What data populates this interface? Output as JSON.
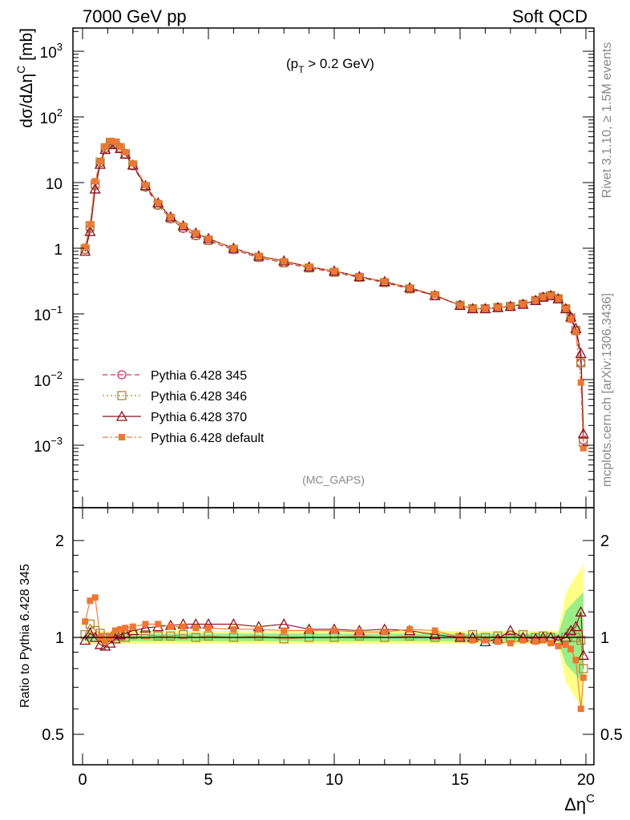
{
  "header": {
    "left": "7000 GeV pp",
    "right": "Soft QCD"
  },
  "side_labels": {
    "rivet": "Rivet 3.1.10, ≥ 1.5M events",
    "mcplots": "mcplots.cern.ch [arXiv:1306.3436]"
  },
  "annotations": {
    "cut": "(p_T > 0.2 GeV)",
    "cut_prefix": "(p",
    "cut_sub": "T",
    "cut_suffix": " > 0.2 GeV)",
    "analysis": "(MC_GAPS)"
  },
  "axes": {
    "ylabel_main": "dσ/dΔη^C [mb]",
    "ylabel_main_base": "dσ/dΔη",
    "ylabel_main_sup": "C",
    "ylabel_main_unit": " [mb]",
    "ylabel_ratio": "Ratio to Pythia 6.428 345",
    "xlabel": "Δη^C",
    "xlabel_base": "Δη",
    "xlabel_sup": "C",
    "x_ticks": [
      "0",
      "5",
      "10",
      "15",
      "20"
    ],
    "main_ticks": [
      "10^-3",
      "10^-2",
      "10^-1",
      "1",
      "10",
      "10^2",
      "10^3"
    ],
    "ratio_ticks": [
      "0.5",
      "1",
      "2"
    ]
  },
  "chart_data": [
    {
      "type": "line",
      "panel": "main",
      "title": "",
      "xlabel": "Δη^C",
      "ylabel": "dσ/dΔη^C [mb]",
      "xlim": [
        -0.5,
        20.5
      ],
      "ylim": [
        0.00015,
        2500
      ],
      "yscale": "log",
      "legend_position": "lower-left",
      "x": [
        0.1,
        0.3,
        0.5,
        0.7,
        0.9,
        1.1,
        1.3,
        1.5,
        1.7,
        2.0,
        2.5,
        3.0,
        3.5,
        4.0,
        4.5,
        5.0,
        6.0,
        7.0,
        8.0,
        9.0,
        10.0,
        11.0,
        12.0,
        13.0,
        14.0,
        15.0,
        15.5,
        16.0,
        16.5,
        17.0,
        17.5,
        18.0,
        18.3,
        18.6,
        18.9,
        19.2,
        19.4,
        19.6,
        19.8,
        19.9
      ],
      "series": [
        {
          "name": "Pythia 6.428 345",
          "color": "#cc3366",
          "marker": "circle-open",
          "line": "dashed",
          "values": [
            0.95,
            2.0,
            9.0,
            20,
            33,
            40,
            39,
            33,
            27,
            18,
            8.5,
            4.5,
            2.8,
            2.0,
            1.55,
            1.3,
            0.95,
            0.72,
            0.6,
            0.5,
            0.43,
            0.36,
            0.3,
            0.24,
            0.19,
            0.135,
            0.12,
            0.12,
            0.125,
            0.13,
            0.14,
            0.16,
            0.18,
            0.19,
            0.17,
            0.12,
            0.085,
            0.055,
            0.018,
            0.0012
          ]
        },
        {
          "name": "Pythia 6.428 346",
          "color": "#aa8833",
          "marker": "square-open",
          "line": "dotted",
          "values": [
            0.97,
            2.2,
            9.5,
            20.5,
            34,
            41,
            40,
            34,
            27.5,
            18.5,
            8.7,
            4.6,
            2.85,
            2.05,
            1.58,
            1.32,
            0.96,
            0.73,
            0.6,
            0.5,
            0.43,
            0.36,
            0.3,
            0.24,
            0.19,
            0.135,
            0.12,
            0.12,
            0.125,
            0.13,
            0.14,
            0.16,
            0.18,
            0.19,
            0.17,
            0.12,
            0.087,
            0.056,
            0.018,
            0.0011
          ]
        },
        {
          "name": "Pythia 6.428 370",
          "color": "#881122",
          "marker": "triangle-open",
          "line": "solid",
          "values": [
            0.9,
            1.8,
            8.0,
            19,
            32,
            38,
            38,
            33,
            27,
            18.5,
            9.0,
            4.9,
            3.0,
            2.2,
            1.7,
            1.4,
            1.0,
            0.76,
            0.64,
            0.52,
            0.45,
            0.37,
            0.31,
            0.25,
            0.19,
            0.135,
            0.12,
            0.12,
            0.125,
            0.13,
            0.14,
            0.16,
            0.18,
            0.19,
            0.17,
            0.12,
            0.09,
            0.06,
            0.025,
            0.0015
          ]
        },
        {
          "name": "Pythia 6.428 default",
          "color": "#ee7733",
          "marker": "square-filled",
          "line": "dashdot",
          "values": [
            1.05,
            2.3,
            10.5,
            21,
            35,
            43,
            42,
            35,
            29,
            19.5,
            9.2,
            4.9,
            3.0,
            2.2,
            1.7,
            1.4,
            1.0,
            0.76,
            0.63,
            0.52,
            0.45,
            0.37,
            0.31,
            0.25,
            0.195,
            0.135,
            0.12,
            0.12,
            0.125,
            0.13,
            0.14,
            0.16,
            0.18,
            0.19,
            0.17,
            0.12,
            0.083,
            0.053,
            0.009,
            0.0009
          ]
        }
      ]
    },
    {
      "type": "line",
      "panel": "ratio",
      "title": "",
      "xlabel": "Δη^C",
      "ylabel": "Ratio to Pythia 6.428 345",
      "xlim": [
        -0.5,
        20.5
      ],
      "ylim": [
        0.38,
        2.3
      ],
      "yscale": "log",
      "x": [
        0.1,
        0.3,
        0.5,
        0.7,
        0.9,
        1.1,
        1.3,
        1.5,
        1.7,
        2.0,
        2.5,
        3.0,
        3.5,
        4.0,
        4.5,
        5.0,
        6.0,
        7.0,
        8.0,
        9.0,
        10.0,
        11.0,
        12.0,
        13.0,
        14.0,
        15.0,
        15.5,
        16.0,
        16.5,
        17.0,
        17.5,
        18.0,
        18.3,
        18.6,
        18.9,
        19.2,
        19.4,
        19.6,
        19.8,
        19.9
      ],
      "series": [
        {
          "name": "Pythia 6.428 346",
          "color": "#aa8833",
          "marker": "square-open",
          "values": [
            1.02,
            1.1,
            1.05,
            1.03,
            1.0,
            1.0,
            1.01,
            1.01,
            1.0,
            1.02,
            1.02,
            1.01,
            1.01,
            1.02,
            1.0,
            1.01,
            1.0,
            1.01,
            0.99,
            1.0,
            1.0,
            1.01,
            1.0,
            1.01,
            1.0,
            1.0,
            1.02,
            1.0,
            1.01,
            1.0,
            1.02,
            1.0,
            1.01,
            1.0,
            0.98,
            1.0,
            1.03,
            1.0,
            0.98,
            0.8
          ]
        },
        {
          "name": "Pythia 6.428 370",
          "color": "#881122",
          "marker": "triangle-open",
          "values": [
            0.98,
            1.03,
            1.0,
            0.95,
            0.94,
            0.96,
            0.99,
            1.02,
            1.03,
            1.05,
            1.07,
            1.08,
            1.09,
            1.1,
            1.1,
            1.1,
            1.1,
            1.08,
            1.1,
            1.06,
            1.06,
            1.05,
            1.06,
            1.05,
            1.02,
            1.0,
            1.0,
            0.97,
            0.99,
            1.05,
            1.0,
            0.99,
            1.0,
            1.0,
            0.98,
            1.0,
            1.05,
            1.08,
            1.2,
            0.88
          ]
        },
        {
          "name": "Pythia 6.428 default",
          "color": "#ee7733",
          "marker": "square-filled",
          "values": [
            1.12,
            1.3,
            1.33,
            1.0,
            0.97,
            1.0,
            1.05,
            1.06,
            1.07,
            1.08,
            1.1,
            1.1,
            1.08,
            1.08,
            1.07,
            1.07,
            1.06,
            1.06,
            1.05,
            1.05,
            1.05,
            1.04,
            1.04,
            1.06,
            1.05,
            1.0,
            0.98,
            0.98,
            0.97,
            0.96,
            0.98,
            0.97,
            0.98,
            0.96,
            0.94,
            0.95,
            0.92,
            0.85,
            0.6,
            0.75
          ]
        }
      ]
    }
  ]
}
